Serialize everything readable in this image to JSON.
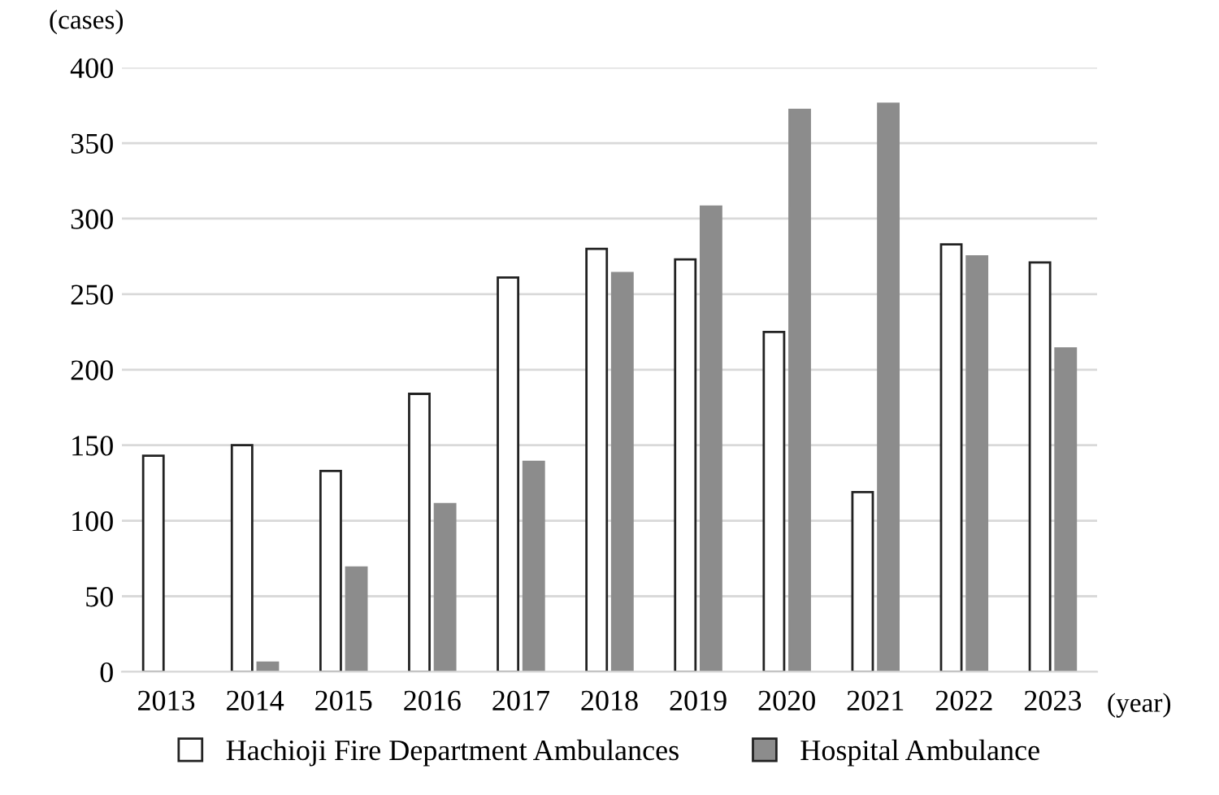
{
  "chart_data": {
    "type": "bar",
    "categories": [
      "2013",
      "2014",
      "2015",
      "2016",
      "2017",
      "2018",
      "2019",
      "2020",
      "2021",
      "2022",
      "2023"
    ],
    "series": [
      {
        "name": "Hachioji Fire Department Ambulances",
        "color": "#ffffff",
        "values": [
          143,
          150,
          133,
          184,
          261,
          280,
          273,
          225,
          119,
          283,
          271
        ]
      },
      {
        "name": "Hospital Ambulance",
        "color": "#8c8c8c",
        "values": [
          null,
          6,
          69,
          111,
          139,
          264,
          308,
          372,
          376,
          275,
          214
        ]
      }
    ],
    "ylabel": "(cases)",
    "xlabel": "(year)",
    "ylim": [
      0,
      400
    ],
    "yticks": [
      0,
      50,
      100,
      150,
      200,
      250,
      300,
      350,
      400
    ],
    "grid": "y",
    "legend": "bottom"
  }
}
